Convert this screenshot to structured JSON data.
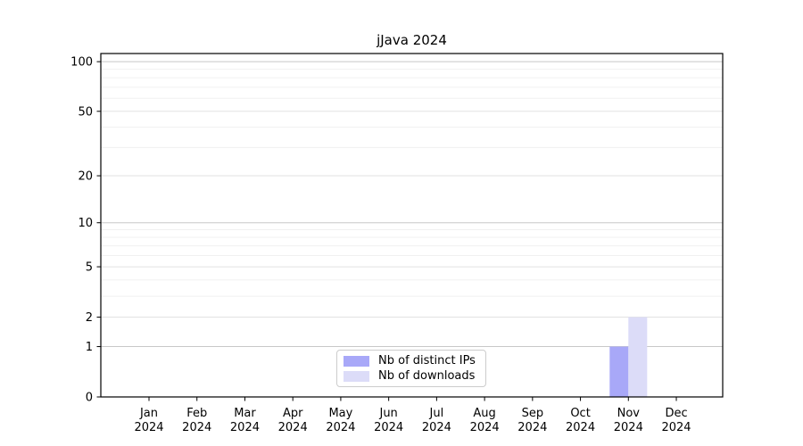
{
  "chart_data": {
    "type": "bar",
    "title": "jJava 2024",
    "categories": [
      "Jan 2024",
      "Feb 2024",
      "Mar 2024",
      "Apr 2024",
      "May 2024",
      "Jun 2024",
      "Jul 2024",
      "Aug 2024",
      "Sep 2024",
      "Oct 2024",
      "Nov 2024",
      "Dec 2024"
    ],
    "series": [
      {
        "name": "Nb of distinct IPs",
        "color": "#a8a8f8",
        "values": [
          0,
          0,
          0,
          0,
          0,
          0,
          0,
          0,
          0,
          0,
          1,
          0
        ]
      },
      {
        "name": "Nb of downloads",
        "color": "#dcdcf8",
        "values": [
          0,
          0,
          0,
          0,
          0,
          0,
          0,
          0,
          0,
          0,
          2,
          0
        ]
      }
    ],
    "xlabel": "",
    "ylabel": "",
    "yscale": "log1p",
    "ylim": [
      0,
      112
    ],
    "yticks": [
      0,
      1,
      2,
      5,
      10,
      20,
      50,
      100
    ],
    "minor_yticks": [
      3,
      4,
      6,
      7,
      8,
      9,
      30,
      40,
      60,
      70,
      80,
      90
    ],
    "grid": "horizontal",
    "legend_position": "lower center",
    "colors": {
      "decade_gridline": "#c8c8c8",
      "major_gridline": "#e2e2e2",
      "minor_gridline": "#f0f0f0",
      "axis": "#000000",
      "text": "#000000",
      "background": "#ffffff"
    }
  }
}
